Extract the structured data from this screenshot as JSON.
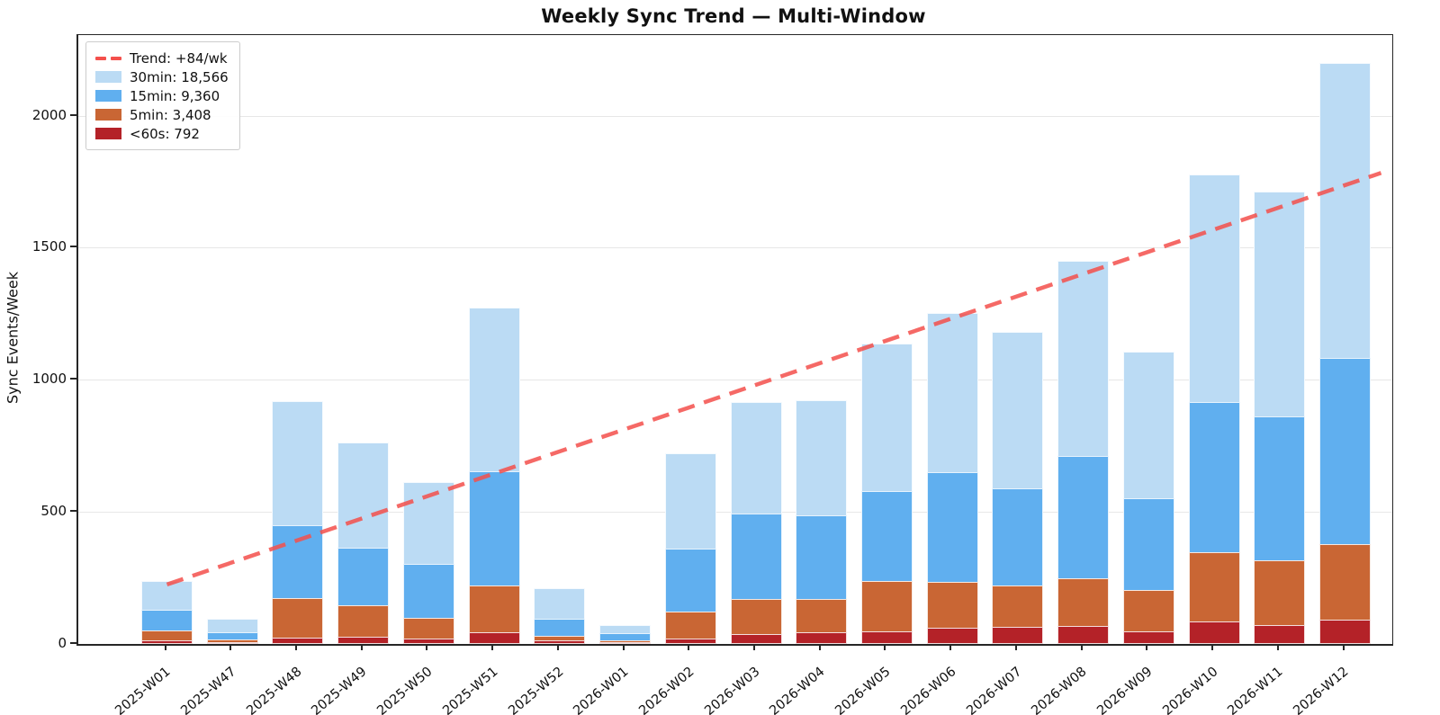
{
  "chart_data": {
    "type": "bar",
    "stacking": "overlaid-nested",
    "title": "Weekly Sync Trend — Multi-Window",
    "ylabel": "Sync Events/Week",
    "xlabel": "",
    "grid": "horizontal",
    "legend_position": "upper-left",
    "yticks": [
      0,
      500,
      1000,
      1500,
      2000
    ],
    "ylim": [
      0,
      2305
    ],
    "categories": [
      "2025-W01",
      "2025-W47",
      "2025-W48",
      "2025-W49",
      "2025-W50",
      "2025-W51",
      "2025-W52",
      "2026-W01",
      "2026-W02",
      "2026-W03",
      "2026-W04",
      "2026-W05",
      "2026-W06",
      "2026-W07",
      "2026-W08",
      "2026-W09",
      "2026-W10",
      "2026-W11",
      "2026-W12"
    ],
    "series": [
      {
        "name": "30min",
        "legend_label": "30min: 18,566",
        "total": 18566,
        "color": "#BBDBF4",
        "values": [
          238,
          96,
          918,
          762,
          614,
          1272,
          210,
          70,
          722,
          916,
          924,
          1136,
          1254,
          1182,
          1452,
          1108,
          1778,
          1714,
          2200
        ]
      },
      {
        "name": "15min",
        "legend_label": "15min: 9,360",
        "total": 9360,
        "color": "#60AFEF",
        "values": [
          128,
          46,
          450,
          366,
          302,
          654,
          96,
          42,
          360,
          494,
          486,
          578,
          652,
          588,
          710,
          550,
          916,
          860,
          1082
        ]
      },
      {
        "name": "5min",
        "legend_label": "5min: 3,408",
        "total": 3408,
        "color": "#C96634",
        "values": [
          50,
          18,
          172,
          146,
          100,
          222,
          32,
          14,
          122,
          170,
          170,
          238,
          236,
          222,
          250,
          204,
          346,
          318,
          378
        ]
      },
      {
        "name": "<60s",
        "legend_label": "<60s: 792",
        "total": 792,
        "color": "#B42228",
        "values": [
          12,
          6,
          24,
          26,
          20,
          44,
          12,
          6,
          22,
          38,
          44,
          48,
          60,
          66,
          68,
          48,
          84,
          72,
          92
        ]
      }
    ],
    "trend": {
      "label": "Trend: +84/wk",
      "slope_per_week": 84,
      "start_value": 225,
      "end_value": 1737,
      "color": "#F4504C"
    }
  }
}
